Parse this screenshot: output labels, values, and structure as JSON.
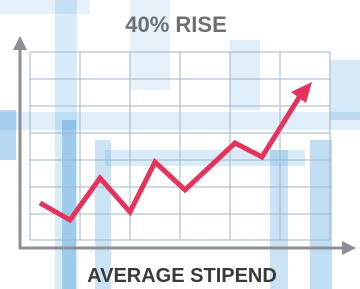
{
  "header": {
    "title": "40% RISE"
  },
  "footer": {
    "caption": "AVERAGE STIPEND"
  }
}
